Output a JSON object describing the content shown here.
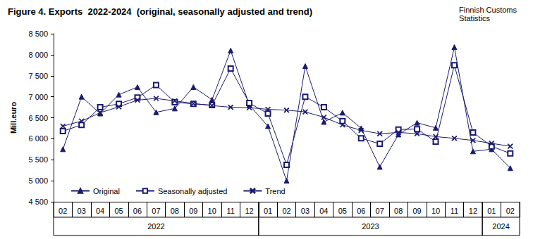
{
  "chart_data": {
    "type": "line",
    "title": "Figure 4. Exports  2022-2024  (original, seasonally adjusted and trend)",
    "source": "Finnish Customs\nStatistics",
    "y_label": "Mill.euro",
    "categories": [
      "02",
      "03",
      "04",
      "05",
      "06",
      "07",
      "08",
      "09",
      "10",
      "11",
      "12",
      "01",
      "02",
      "03",
      "04",
      "05",
      "06",
      "07",
      "08",
      "09",
      "10",
      "11",
      "12",
      "01",
      "02"
    ],
    "category_years": [
      "2022",
      "2022",
      "2022",
      "2022",
      "2022",
      "2022",
      "2022",
      "2022",
      "2022",
      "2022",
      "2022",
      "2023",
      "2023",
      "2023",
      "2023",
      "2023",
      "2023",
      "2023",
      "2023",
      "2023",
      "2023",
      "2023",
      "2023",
      "2024",
      "2024"
    ],
    "series": [
      {
        "name": "Original",
        "color": "#1a1a6e",
        "marker": "triangle",
        "values": [
          5750,
          7000,
          6600,
          7050,
          7230,
          6630,
          6720,
          7230,
          6930,
          8100,
          6800,
          6300,
          5000,
          7730,
          6400,
          6620,
          6250,
          5330,
          6100,
          6380,
          6260,
          8180,
          5700,
          5750,
          5300
        ]
      },
      {
        "name": "Seasonally adjusted",
        "color": "#1a1a6e",
        "marker": "square_open",
        "values": [
          6180,
          6330,
          6750,
          6830,
          6980,
          7280,
          6870,
          6830,
          6800,
          7670,
          6850,
          6600,
          5380,
          7000,
          6750,
          6420,
          6010,
          5880,
          6220,
          6230,
          5930,
          7750,
          6150,
          5820,
          5650
        ]
      },
      {
        "name": "Trend",
        "color": "#1a1a6e",
        "marker": "x",
        "values": [
          6300,
          6420,
          6620,
          6760,
          6920,
          6960,
          6900,
          6840,
          6790,
          6750,
          6740,
          6700,
          6680,
          6640,
          6510,
          6330,
          6200,
          6120,
          6150,
          6120,
          6050,
          6010,
          5960,
          5890,
          5820
        ]
      }
    ],
    "ylim": [
      4500,
      8500
    ],
    "yticks": [
      {
        "value": 4500,
        "label": "4 500"
      },
      {
        "value": 5000,
        "label": "5 000"
      },
      {
        "value": 5500,
        "label": "5 500"
      },
      {
        "value": 6000,
        "label": "6 000"
      },
      {
        "value": 6500,
        "label": "6 500"
      },
      {
        "value": 7000,
        "label": "7 000"
      },
      {
        "value": 7500,
        "label": "7 500"
      },
      {
        "value": 8000,
        "label": "8 000"
      },
      {
        "value": 8500,
        "label": "8 500"
      }
    ],
    "grid": false,
    "legend": "lower left"
  }
}
